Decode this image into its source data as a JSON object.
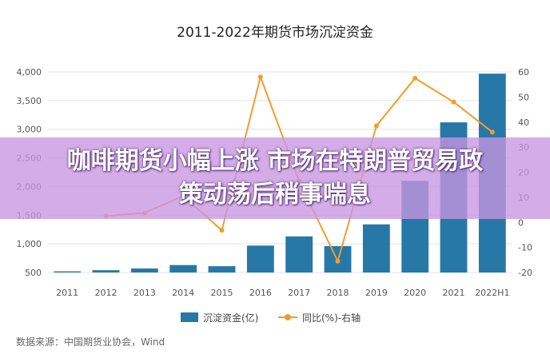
{
  "chart_data": {
    "type": "bar",
    "title": "2011-2022年期货市场沉淀资金",
    "categories": [
      "2011",
      "2012",
      "2013",
      "2014",
      "2015",
      "2016",
      "2017",
      "2018",
      "2019",
      "2020",
      "2021",
      "2022H1"
    ],
    "series": [
      {
        "name": "沉淀资金(亿)",
        "type": "bar",
        "axis": "left",
        "color": "#2878a7",
        "values": [
          520,
          540,
          570,
          630,
          610,
          970,
          1130,
          960,
          1340,
          2100,
          3120,
          3970
        ]
      },
      {
        "name": "同比(%)-右轴",
        "type": "line",
        "axis": "right",
        "color": "#f39c2c",
        "values": [
          null,
          2.5,
          3.8,
          10.5,
          -3.2,
          58,
          16.5,
          -15.5,
          38.5,
          57.5,
          48,
          36
        ]
      }
    ],
    "ylim_left": [
      500,
      4000
    ],
    "yticks_left": [
      "4,000",
      "3,500",
      "3,000",
      "2,500",
      "2,000",
      "1,500",
      "1,000",
      "500"
    ],
    "ylim_right": [
      -20,
      60
    ],
    "yticks_right": [
      "60",
      "50",
      "40",
      "30",
      "20",
      "10",
      "0",
      "-10",
      "-20"
    ],
    "legend_position": "bottom"
  },
  "source": "数据来源：中国期货业协会，Wind",
  "banner": {
    "line1": "咖啡期货小幅上涨 市场在特朗普贸易政",
    "line2": "策动荡后稍事喘息"
  }
}
